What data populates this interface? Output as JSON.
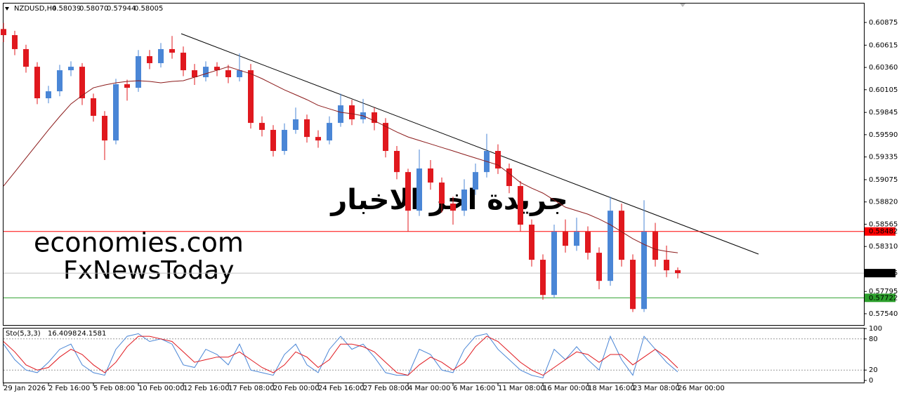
{
  "chart_data": [
    {
      "type": "candlestick",
      "title": "NZDUSD,H4",
      "header_prices": [
        "0.58039",
        "0.58070",
        "0.57944",
        "0.58005"
      ],
      "categories": [
        "29 Jan 2026",
        null,
        null,
        null,
        "2 Feb 16:00",
        null,
        null,
        null,
        "5 Feb 08:00",
        null,
        null,
        null,
        "10 Feb 00:00",
        null,
        null,
        null,
        "12 Feb 16:00",
        null,
        null,
        null,
        "17 Feb 08:00",
        null,
        null,
        null,
        "20 Feb 00:00",
        null,
        null,
        null,
        "24 Feb 16:00",
        null,
        null,
        null,
        "27 Feb 08:00",
        null,
        null,
        null,
        "4 Mar 00:00",
        null,
        null,
        null,
        "6 Mar 16:00",
        null,
        null,
        null,
        "11 Mar 08:00",
        null,
        null,
        null,
        "16 Mar 00:00",
        null,
        null,
        null,
        "18 Mar 16:00",
        null,
        null,
        null,
        "23 Mar 08:00",
        null,
        null,
        null,
        "26 Mar 00:00"
      ],
      "open": [
        0.608,
        0.6073,
        0.6057,
        0.60368,
        0.60007,
        0.60087,
        0.60328,
        0.60368,
        0.60007,
        0.59806,
        0.59524,
        0.60168,
        0.60127,
        0.60489,
        0.60409,
        0.6057,
        0.60529,
        0.60328,
        0.60248,
        0.60368,
        0.60328,
        0.60248,
        0.60328,
        0.59725,
        0.59645,
        0.59404,
        0.59645,
        0.59766,
        0.59564,
        0.59524,
        0.59725,
        0.59926,
        0.59766,
        0.59846,
        0.59725,
        0.59404,
        0.59162,
        0.5872,
        0.59203,
        0.59042,
        0.58801,
        0.5872,
        0.58962,
        0.59162,
        0.59404,
        0.59203,
        0.59002,
        0.5856,
        0.58158,
        0.57755,
        0.58479,
        0.58318,
        0.58479,
        0.58238,
        0.57916,
        0.5872,
        0.58158,
        0.57594,
        0.58479,
        0.58158,
        0.58039
      ],
      "high": [
        0.6087,
        0.6078,
        0.6062,
        0.6042,
        0.6015,
        0.6039,
        0.6043,
        0.6041,
        0.6006,
        0.5986,
        0.6023,
        0.6022,
        0.6056,
        0.6056,
        0.6064,
        0.6072,
        0.606,
        0.604,
        0.6043,
        0.6042,
        0.6039,
        0.6052,
        0.604,
        0.598,
        0.597,
        0.5972,
        0.599,
        0.5982,
        0.5964,
        0.598,
        0.6006,
        0.5999,
        0.6,
        0.599,
        0.5978,
        0.5946,
        0.592,
        0.5942,
        0.593,
        0.591,
        0.5888,
        0.5908,
        0.5926,
        0.596,
        0.5948,
        0.5926,
        0.5906,
        0.5862,
        0.5822,
        0.5856,
        0.5862,
        0.5864,
        0.5854,
        0.583,
        0.5888,
        0.588,
        0.5822,
        0.5884,
        0.5858,
        0.5832,
        0.5807
      ],
      "low": [
        0.6065,
        0.605,
        0.603,
        0.5994,
        0.5995,
        0.6003,
        0.6026,
        0.5993,
        0.5974,
        0.593,
        0.5948,
        0.5998,
        0.6008,
        0.6034,
        0.6036,
        0.6046,
        0.6026,
        0.6016,
        0.602,
        0.6026,
        0.6018,
        0.602,
        0.5966,
        0.5957,
        0.5934,
        0.5936,
        0.596,
        0.595,
        0.5944,
        0.5948,
        0.5968,
        0.597,
        0.5972,
        0.5964,
        0.5933,
        0.5908,
        0.5848,
        0.5866,
        0.5896,
        0.587,
        0.5856,
        0.5866,
        0.589,
        0.591,
        0.5914,
        0.5892,
        0.5848,
        0.5808,
        0.577,
        0.5772,
        0.5824,
        0.5826,
        0.5816,
        0.5782,
        0.5786,
        0.5808,
        0.5756,
        0.5756,
        0.5808,
        0.5796,
        0.57944
      ],
      "close": [
        0.6073,
        0.6057,
        0.60368,
        0.60007,
        0.60087,
        0.60328,
        0.60368,
        0.60007,
        0.59806,
        0.59524,
        0.60168,
        0.60127,
        0.60489,
        0.60409,
        0.6057,
        0.60529,
        0.60328,
        0.60248,
        0.60368,
        0.60328,
        0.60248,
        0.60328,
        0.59725,
        0.59645,
        0.59404,
        0.59645,
        0.59766,
        0.59564,
        0.59524,
        0.59725,
        0.59926,
        0.59766,
        0.59846,
        0.59725,
        0.59404,
        0.59162,
        0.5872,
        0.59203,
        0.59042,
        0.58801,
        0.5872,
        0.58962,
        0.59162,
        0.59404,
        0.59203,
        0.59002,
        0.5856,
        0.58158,
        0.57755,
        0.58479,
        0.58318,
        0.58479,
        0.58238,
        0.57916,
        0.5872,
        0.58158,
        0.57594,
        0.58479,
        0.58158,
        0.58037,
        0.58005
      ],
      "up_color": "#4a86d6",
      "down_color": "#e0181e",
      "moving_average": {
        "color": "#8b1a1a",
        "values": [
          0.59002,
          0.59162,
          0.59323,
          0.59484,
          0.59645,
          0.59798,
          0.59942,
          0.60039,
          0.60127,
          0.60159,
          0.60184,
          0.602,
          0.60208,
          0.602,
          0.60184,
          0.602,
          0.60208,
          0.60248,
          0.60288,
          0.60328,
          0.60368,
          0.60328,
          0.60288,
          0.60232,
          0.60167,
          0.60103,
          0.60047,
          0.59991,
          0.59926,
          0.59886,
          0.59846,
          0.5983,
          0.59806,
          0.59749,
          0.59685,
          0.59621,
          0.59564,
          0.59524,
          0.59484,
          0.59444,
          0.59404,
          0.59363,
          0.59323,
          0.59283,
          0.59243,
          0.59146,
          0.59042,
          0.58978,
          0.58921,
          0.58841,
          0.5876,
          0.5872,
          0.5868,
          0.58624,
          0.58559,
          0.58479,
          0.58399,
          0.58334,
          0.58278,
          0.58254,
          0.58238
        ]
      },
      "ylim": [
        0.57411,
        0.611
      ],
      "yticks": [
        0.60875,
        0.60615,
        {
          "value": 0.6036,
          "label": "0.60360"
        },
        0.60105,
        0.59845,
        {
          "value": 0.5959,
          "label": "0.59590"
        },
        0.59335,
        0.59075,
        {
          "value": 0.5882,
          "label": "0.58820"
        },
        0.58565,
        {
          "value": 0.5831,
          "label": "0.58310"
        },
        0.57795,
        {
          "value": 0.5754,
          "label": "0.57540"
        }
      ],
      "levels": [
        {
          "value": 0.58482,
          "color": "#ff0000",
          "box_color": "#ff0000"
        },
        {
          "value": 0.58005,
          "color": "#c0c0c0",
          "box_color": "#000000"
        },
        {
          "value": 0.57722,
          "color": "#2ca02c",
          "box_color": "#2ca02c"
        }
      ],
      "watermarks": [
        "economies.com",
        "FxNewsToday",
        "جريدة اخر الاخبار"
      ]
    },
    {
      "type": "line",
      "title": "Sto(5,3,3)",
      "ylim": [
        0,
        100
      ],
      "yticks": [
        0,
        20,
        80,
        100
      ],
      "series": [
        {
          "color": "#4a86d6",
          "values": [
            70,
            40,
            20,
            15,
            35,
            60,
            70,
            30,
            15,
            10,
            60,
            85,
            90,
            75,
            80,
            70,
            30,
            25,
            60,
            50,
            30,
            70,
            20,
            15,
            10,
            50,
            70,
            30,
            15,
            60,
            85,
            60,
            70,
            45,
            15,
            10,
            10,
            60,
            50,
            20,
            15,
            60,
            85,
            90,
            60,
            40,
            20,
            10,
            5,
            60,
            40,
            65,
            40,
            20,
            85,
            40,
            10,
            85,
            60,
            35,
            16.4098
          ]
        },
        {
          "color": "#e0181e",
          "values": [
            75,
            55,
            30,
            20,
            25,
            45,
            60,
            50,
            30,
            15,
            35,
            65,
            85,
            85,
            80,
            75,
            55,
            35,
            40,
            45,
            45,
            55,
            40,
            25,
            15,
            30,
            55,
            45,
            25,
            40,
            70,
            70,
            65,
            55,
            35,
            15,
            10,
            30,
            45,
            35,
            20,
            35,
            65,
            85,
            75,
            55,
            35,
            20,
            10,
            25,
            40,
            55,
            50,
            35,
            50,
            50,
            30,
            45,
            60,
            45,
            24.1581
          ]
        }
      ]
    }
  ]
}
